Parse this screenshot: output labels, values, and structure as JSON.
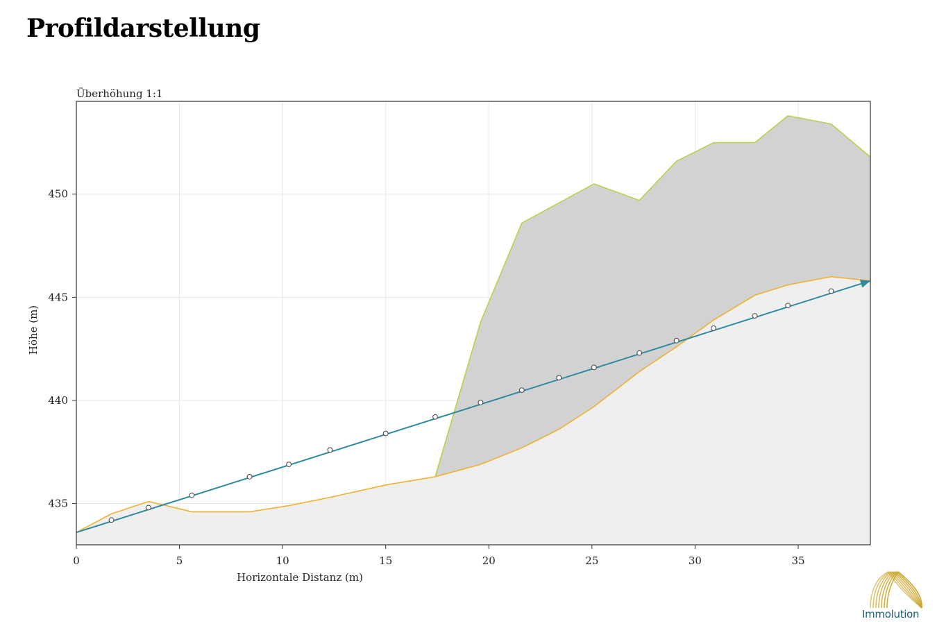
{
  "page": {
    "title": "Profildarstellung",
    "logo_text": "Immolution"
  },
  "colors": {
    "line": "#2f8aa0",
    "terrain_line": "#f0b030",
    "upper_line": "#b8d040",
    "upper_fill": "#d2d2d2",
    "ground_fill": "#efefef",
    "grid": "#e6e6e6",
    "logo_gold": "#c9a227",
    "logo_text": "#1f5d7a"
  },
  "chart_data": {
    "type": "line",
    "corner_label": "Überhöhung 1:1",
    "xlabel": "Horizontale Distanz (m)",
    "ylabel": "Höhe (m)",
    "xlim": [
      0,
      38.5
    ],
    "ylim": [
      433,
      454.5
    ],
    "x_ticks": [
      0,
      5,
      10,
      15,
      20,
      25,
      30,
      35
    ],
    "x_tick_labels": [
      "0",
      "5",
      "10",
      "15",
      "20",
      "25",
      "30",
      "35"
    ],
    "y_ticks": [
      435,
      440,
      445,
      450
    ],
    "y_tick_labels": [
      "435",
      "440",
      "445",
      "450"
    ],
    "grid": true,
    "series": [
      {
        "kind": "terrain",
        "x": [
          0,
          1.7,
          3.5,
          5.6,
          8.4,
          10.3,
          12.3,
          15.0,
          17.4,
          19.6,
          21.6,
          23.4,
          25.1,
          27.3,
          29.1,
          30.9,
          32.9,
          34.5,
          36.6,
          38.5
        ],
        "y": [
          433.6,
          434.5,
          435.1,
          434.6,
          434.6,
          434.9,
          435.3,
          435.9,
          436.3,
          436.9,
          437.7,
          438.6,
          439.7,
          441.4,
          442.6,
          443.9,
          445.1,
          445.6,
          446.0,
          445.8
        ]
      },
      {
        "kind": "upper_surface",
        "x": [
          17.4,
          19.6,
          21.6,
          25.1,
          27.3,
          29.1,
          30.9,
          32.9,
          34.5,
          36.6,
          38.5
        ],
        "y": [
          436.3,
          443.8,
          448.6,
          450.5,
          449.7,
          451.6,
          452.5,
          452.5,
          453.8,
          453.4,
          451.8
        ]
      },
      {
        "kind": "sight_line",
        "x": [
          0,
          38.5
        ],
        "y": [
          433.6,
          445.8
        ]
      },
      {
        "kind": "markers",
        "x": [
          1.7,
          3.5,
          5.6,
          8.4,
          10.3,
          12.3,
          15.0,
          17.4,
          19.6,
          21.6,
          23.4,
          25.1,
          27.3,
          29.1,
          30.9,
          32.9,
          34.5,
          36.6
        ],
        "y": [
          434.2,
          434.8,
          435.4,
          436.3,
          436.9,
          437.6,
          438.4,
          439.2,
          439.9,
          440.5,
          441.1,
          441.6,
          442.3,
          442.9,
          443.5,
          444.1,
          444.6,
          445.3
        ]
      }
    ]
  }
}
